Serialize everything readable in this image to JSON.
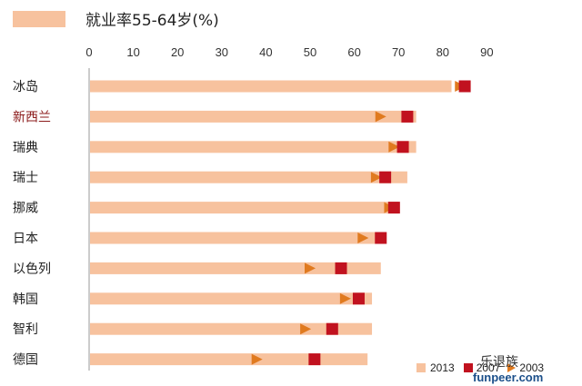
{
  "chart_data": {
    "type": "bar",
    "title": "就业率55-64岁(%)",
    "xlim": [
      0,
      90
    ],
    "ticks": [
      "0",
      "10",
      "20",
      "30",
      "40",
      "50",
      "60",
      "70",
      "80",
      "90"
    ],
    "categories": [
      "冰岛",
      "新西兰",
      "瑞典",
      "瑞士",
      "挪威",
      "日本",
      "以色列",
      "韩国",
      "智利",
      "德国"
    ],
    "highlight_category": "新西兰",
    "series": [
      {
        "name": "2013",
        "marker": "bar",
        "color": "#f7c29e",
        "values": [
          82,
          74,
          74,
          72,
          70,
          65,
          66,
          64,
          64,
          63
        ]
      },
      {
        "name": "2007",
        "marker": "square",
        "color": "#c1121f",
        "values": [
          85,
          72,
          71,
          67,
          69,
          66,
          57,
          61,
          55,
          51
        ]
      },
      {
        "name": "2003",
        "marker": "triangle",
        "color": "#e07a1f",
        "values": [
          84,
          66,
          69,
          65,
          68,
          62,
          50,
          58,
          49,
          38
        ]
      }
    ],
    "legend": [
      "2013",
      "2007",
      "2003"
    ],
    "grid": false
  },
  "watermark": {
    "line1": "乐退族",
    "line2": "funpeer.com"
  }
}
